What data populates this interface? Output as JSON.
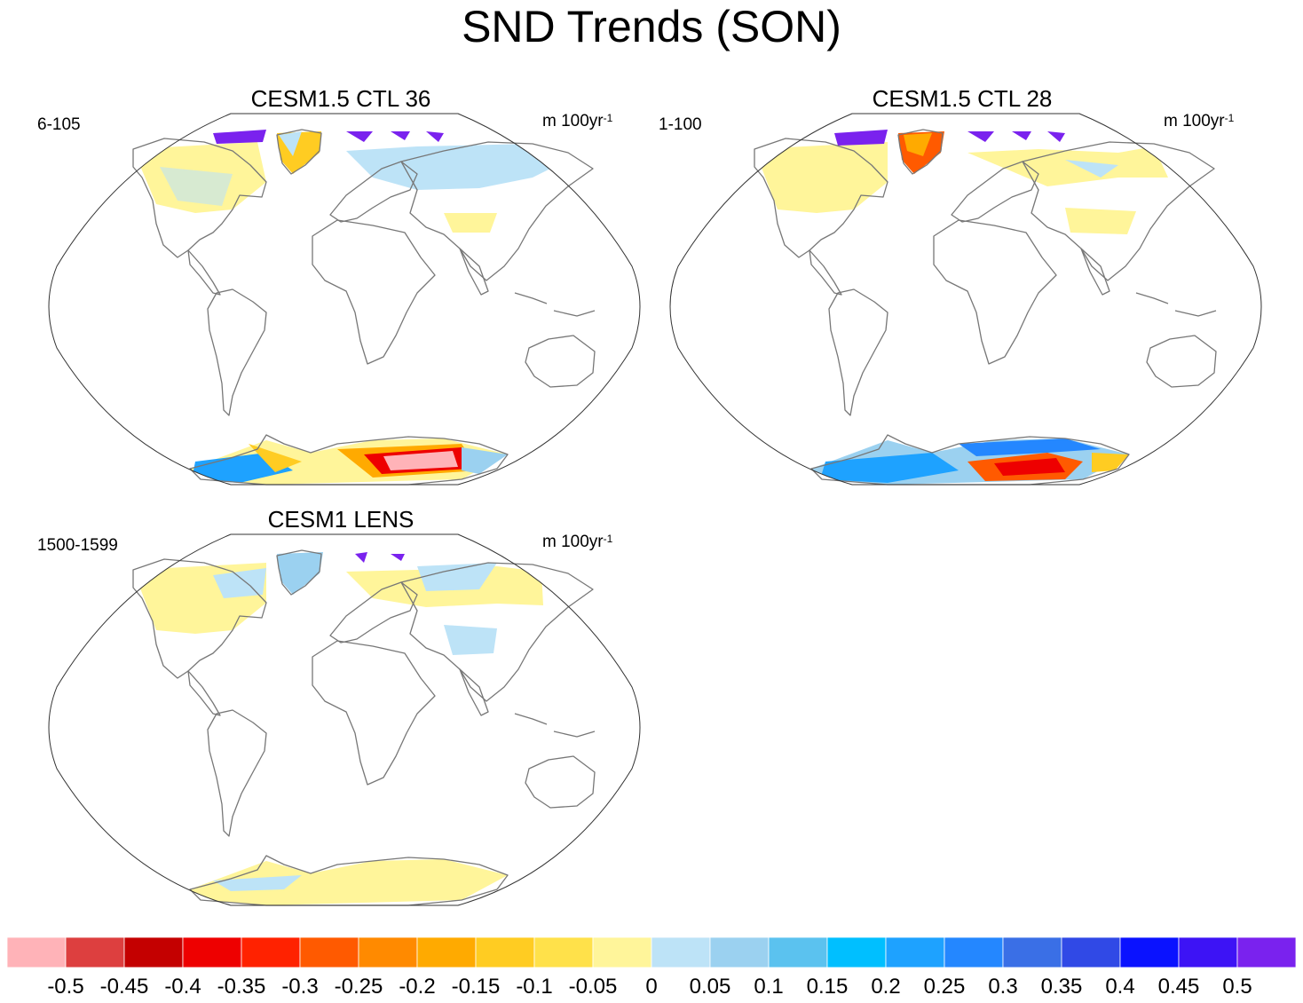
{
  "title": "SND Trends (SON)",
  "panels": [
    {
      "title": "CESM1.5 CTL 36",
      "years": "6-105",
      "units": "m 100yr",
      "units_exp": "-1"
    },
    {
      "title": "CESM1.5 CTL 28",
      "years": "1-100",
      "units": "m 100yr",
      "units_exp": "-1"
    },
    {
      "title": "CESM1 LENS",
      "years": "1500-1599",
      "units": "m 100yr",
      "units_exp": "-1"
    }
  ],
  "colorbar": {
    "colors": [
      "#ffb3b8",
      "#dd3f3f",
      "#c40000",
      "#ee0000",
      "#ff2200",
      "#ff5a00",
      "#ff8a00",
      "#ffaa00",
      "#ffcc22",
      "#ffe14a",
      "#fff59a",
      "#bde3f7",
      "#9bd1f0",
      "#5bc2ef",
      "#00bfff",
      "#1ea2ff",
      "#2487ff",
      "#3a6fe6",
      "#3049e6",
      "#0a12ff",
      "#3d13f5",
      "#7a22ee"
    ],
    "labels": [
      "-0.5",
      "-0.45",
      "-0.4",
      "-0.35",
      "-0.3",
      "-0.25",
      "-0.2",
      "-0.15",
      "-0.1",
      "-0.05",
      "0",
      "0.05",
      "0.1",
      "0.15",
      "0.2",
      "0.25",
      "0.3",
      "0.35",
      "0.4",
      "0.45",
      "0.5"
    ]
  }
}
